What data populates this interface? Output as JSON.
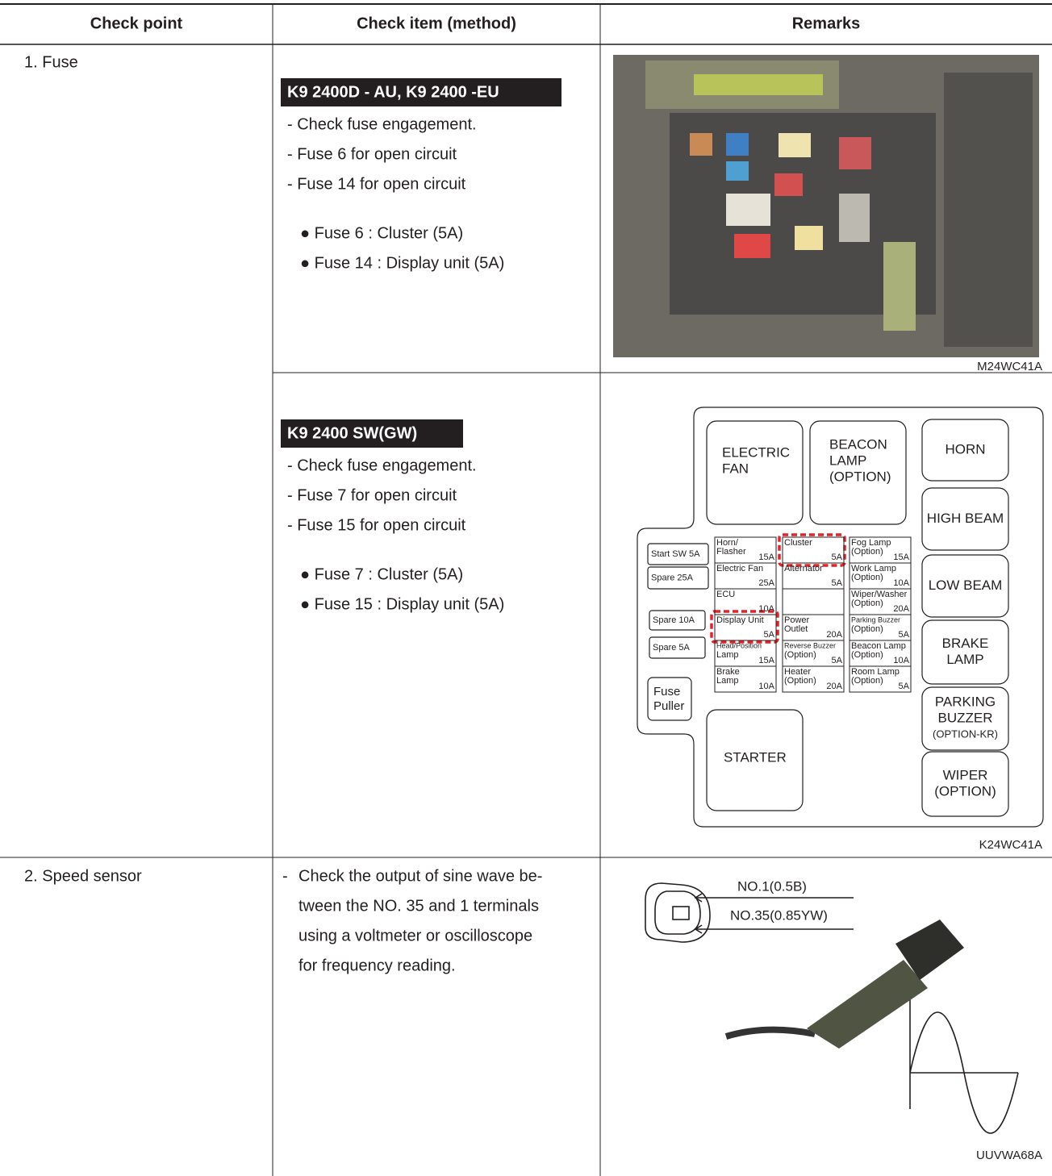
{
  "table": {
    "headers": [
      "Check point",
      "Check item (method)",
      "Remarks"
    ],
    "rows": [
      {
        "check_point": "1. Fuse",
        "items": [
          {
            "model": "K9 2400D - AU, K9 2400 -EU",
            "steps": [
              "- Check fuse engagement.",
              "- Fuse 6 for open circuit",
              "- Fuse 14 for open circuit"
            ],
            "notes": [
              "● Fuse 6 : Cluster (5A)",
              "● Fuse 14 : Display unit (5A)"
            ],
            "figure_code": "M24WC41A"
          },
          {
            "model": "K9 2400 SW(GW)",
            "steps": [
              "- Check fuse engagement.",
              "- Fuse 7 for open circuit",
              "- Fuse 15 for open circuit"
            ],
            "notes": [
              "● Fuse 7 : Cluster (5A)",
              "● Fuse 15 : Display unit (5A)"
            ],
            "figure_code": "K24WC41A"
          }
        ]
      },
      {
        "check_point": "2. Speed sensor",
        "method": {
          "marker": "-",
          "lines": [
            "Check the output of sine wave be-",
            "tween the NO. 35 and 1 terminals",
            "using a voltmeter or oscilloscope",
            "for frequency  reading."
          ]
        },
        "figure": {
          "labels": [
            "NO.1(0.5B)",
            "NO.35(0.85YW)"
          ],
          "code": "UUVWA68A"
        }
      }
    ]
  },
  "fuse_diagram": {
    "relays": [
      {
        "lines": [
          "ELECTRIC",
          "FAN"
        ]
      },
      {
        "lines": [
          "BEACON",
          "LAMP",
          "(OPTION)"
        ]
      },
      {
        "lines": [
          "HORN"
        ]
      },
      {
        "lines": [
          "HIGH BEAM"
        ]
      },
      {
        "lines": [
          "LOW BEAM"
        ]
      },
      {
        "lines": [
          "BRAKE",
          "LAMP"
        ]
      },
      {
        "lines": [
          "PARKING",
          "BUZZER",
          "(OPTION-KR)"
        ]
      },
      {
        "lines": [
          "STARTER"
        ]
      },
      {
        "lines": [
          "WIPER",
          "(OPTION)"
        ]
      }
    ],
    "spares": [
      "Start SW 5A",
      "Spare  25A",
      "Spare 10A",
      "Spare  5A"
    ],
    "puller": [
      "Fuse",
      "Puller"
    ],
    "fuses": [
      [
        {
          "name": [
            "Horn/",
            "Flasher"
          ],
          "amp": "15A"
        },
        {
          "name": [
            "Electric Fan"
          ],
          "amp": "25A"
        },
        {
          "name": [
            "ECU"
          ],
          "amp": "10A"
        },
        {
          "name": [
            "Display Unit"
          ],
          "amp": "5A"
        },
        {
          "name": [
            "Head/Position",
            "Lamp"
          ],
          "amp": "15A"
        },
        {
          "name": [
            "Brake",
            "Lamp"
          ],
          "amp": "10A"
        }
      ],
      [
        {
          "name": [
            "Cluster"
          ],
          "amp": "5A"
        },
        {
          "name": [
            "Alternator"
          ],
          "amp": "5A"
        },
        null,
        {
          "name": [
            "Power",
            "Outlet"
          ],
          "amp": "20A"
        },
        {
          "name": [
            "Reverse Buzzer",
            "(Option)"
          ],
          "amp": "5A"
        },
        {
          "name": [
            "Heater",
            "(Option)"
          ],
          "amp": "20A"
        }
      ],
      [
        {
          "name": [
            "Fog Lamp",
            "(Option)"
          ],
          "amp": "15A"
        },
        {
          "name": [
            "Work Lamp",
            "(Option)"
          ],
          "amp": "10A"
        },
        {
          "name": [
            "Wiper/Washer",
            "(Option)"
          ],
          "amp": "20A"
        },
        {
          "name": [
            "Parking Buzzer",
            "(Option)"
          ],
          "amp": "5A"
        },
        {
          "name": [
            "Beacon Lamp",
            "(Option)"
          ],
          "amp": "10A"
        },
        {
          "name": [
            "Room Lamp",
            "(Option)"
          ],
          "amp": "5A"
        }
      ]
    ]
  }
}
